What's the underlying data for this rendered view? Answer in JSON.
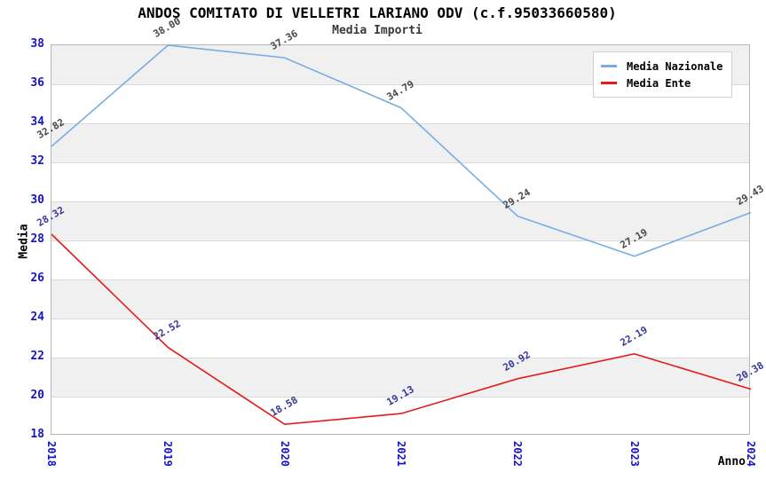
{
  "title": "ANDOS COMITATO DI VELLETRI LARIANO ODV (c.f.95033660580)",
  "subtitle": "Media Importi",
  "axes": {
    "x_title": "Anno",
    "y_title": "Media"
  },
  "chart_data": {
    "type": "line",
    "x": [
      "2018",
      "2019",
      "2020",
      "2021",
      "2022",
      "2023",
      "2024"
    ],
    "series": [
      {
        "name": "Media Nazionale",
        "color": "#79ade2",
        "label_color": "#46464e",
        "values": [
          32.82,
          38.0,
          37.36,
          34.79,
          29.24,
          27.19,
          29.43
        ]
      },
      {
        "name": "Media Ente",
        "color": "#e31b1b",
        "label_color": "#37379c",
        "values": [
          28.32,
          22.52,
          18.58,
          19.13,
          20.92,
          22.19,
          20.38
        ]
      }
    ],
    "xlabel": "Anno",
    "ylabel": "Media",
    "ylim": [
      18,
      38
    ],
    "ytick_step": 2,
    "grid": true,
    "legend_position": "top-right",
    "point_label_decimals": 2,
    "styles": {
      "band_color": "#f0f0f0",
      "grid_color": "#dadada",
      "border_color": "#b6b6b6",
      "tick_label_color": "#1414cc"
    }
  }
}
